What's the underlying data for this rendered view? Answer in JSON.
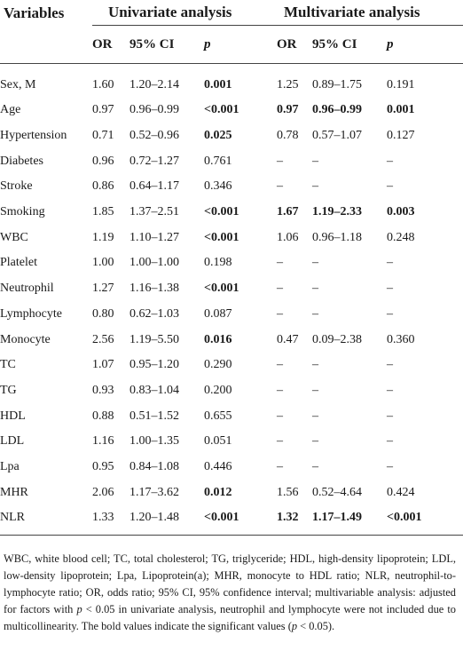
{
  "table": {
    "header_row1": {
      "variables": "Variables",
      "univariate": "Univariate analysis",
      "multivariate": "Multivariate analysis"
    },
    "header_row2": {
      "or_uni": "OR",
      "ci_uni": "95% CI",
      "p_uni": "p",
      "or_multi": "OR",
      "ci_multi": "95% CI",
      "p_multi": "p"
    },
    "rows": [
      {
        "variable": "Sex, M",
        "or_uni": "1.60",
        "ci_uni": "1.20–2.14",
        "p_uni": "0.001",
        "p_uni_bold": true,
        "or_multi": "1.25",
        "ci_multi": "0.89–1.75",
        "p_multi": "0.191",
        "multi_bold": false
      },
      {
        "variable": "Age",
        "or_uni": "0.97",
        "ci_uni": "0.96–0.99",
        "p_uni": "<0.001",
        "p_uni_bold": true,
        "or_multi": "0.97",
        "ci_multi": "0.96–0.99",
        "p_multi": "0.001",
        "multi_bold": true
      },
      {
        "variable": "Hypertension",
        "or_uni": "0.71",
        "ci_uni": "0.52–0.96",
        "p_uni": "0.025",
        "p_uni_bold": true,
        "or_multi": "0.78",
        "ci_multi": "0.57–1.07",
        "p_multi": "0.127",
        "multi_bold": false
      },
      {
        "variable": "Diabetes",
        "or_uni": "0.96",
        "ci_uni": "0.72–1.27",
        "p_uni": "0.761",
        "p_uni_bold": false,
        "or_multi": "–",
        "ci_multi": "–",
        "p_multi": "–",
        "multi_bold": false
      },
      {
        "variable": "Stroke",
        "or_uni": "0.86",
        "ci_uni": "0.64–1.17",
        "p_uni": "0.346",
        "p_uni_bold": false,
        "or_multi": "–",
        "ci_multi": "–",
        "p_multi": "–",
        "multi_bold": false
      },
      {
        "variable": "Smoking",
        "or_uni": "1.85",
        "ci_uni": "1.37–2.51",
        "p_uni": "<0.001",
        "p_uni_bold": true,
        "or_multi": "1.67",
        "ci_multi": "1.19–2.33",
        "p_multi": "0.003",
        "multi_bold": true
      },
      {
        "variable": "WBC",
        "or_uni": "1.19",
        "ci_uni": "1.10–1.27",
        "p_uni": "<0.001",
        "p_uni_bold": true,
        "or_multi": "1.06",
        "ci_multi": "0.96–1.18",
        "p_multi": "0.248",
        "multi_bold": false
      },
      {
        "variable": "Platelet",
        "or_uni": "1.00",
        "ci_uni": "1.00–1.00",
        "p_uni": "0.198",
        "p_uni_bold": false,
        "or_multi": "–",
        "ci_multi": "–",
        "p_multi": "–",
        "multi_bold": false
      },
      {
        "variable": "Neutrophil",
        "or_uni": "1.27",
        "ci_uni": "1.16–1.38",
        "p_uni": "<0.001",
        "p_uni_bold": true,
        "or_multi": "–",
        "ci_multi": "–",
        "p_multi": "–",
        "multi_bold": false
      },
      {
        "variable": "Lymphocyte",
        "or_uni": "0.80",
        "ci_uni": "0.62–1.03",
        "p_uni": "0.087",
        "p_uni_bold": false,
        "or_multi": "–",
        "ci_multi": "–",
        "p_multi": "–",
        "multi_bold": false
      },
      {
        "variable": "Monocyte",
        "or_uni": "2.56",
        "ci_uni": "1.19–5.50",
        "p_uni": "0.016",
        "p_uni_bold": true,
        "or_multi": "0.47",
        "ci_multi": "0.09–2.38",
        "p_multi": "0.360",
        "multi_bold": false
      },
      {
        "variable": "TC",
        "or_uni": "1.07",
        "ci_uni": "0.95–1.20",
        "p_uni": "0.290",
        "p_uni_bold": false,
        "or_multi": "–",
        "ci_multi": "–",
        "p_multi": "–",
        "multi_bold": false
      },
      {
        "variable": "TG",
        "or_uni": "0.93",
        "ci_uni": "0.83–1.04",
        "p_uni": "0.200",
        "p_uni_bold": false,
        "or_multi": "–",
        "ci_multi": "–",
        "p_multi": "–",
        "multi_bold": false
      },
      {
        "variable": "HDL",
        "or_uni": "0.88",
        "ci_uni": "0.51–1.52",
        "p_uni": "0.655",
        "p_uni_bold": false,
        "or_multi": "–",
        "ci_multi": "–",
        "p_multi": "–",
        "multi_bold": false
      },
      {
        "variable": "LDL",
        "or_uni": "1.16",
        "ci_uni": "1.00–1.35",
        "p_uni": "0.051",
        "p_uni_bold": false,
        "or_multi": "–",
        "ci_multi": "–",
        "p_multi": "–",
        "multi_bold": false
      },
      {
        "variable": "Lpa",
        "or_uni": "0.95",
        "ci_uni": "0.84–1.08",
        "p_uni": "0.446",
        "p_uni_bold": false,
        "or_multi": "–",
        "ci_multi": "–",
        "p_multi": "–",
        "multi_bold": false
      },
      {
        "variable": "MHR",
        "or_uni": "2.06",
        "ci_uni": "1.17–3.62",
        "p_uni": "0.012",
        "p_uni_bold": true,
        "or_multi": "1.56",
        "ci_multi": "0.52–4.64",
        "p_multi": "0.424",
        "multi_bold": false
      },
      {
        "variable": "NLR",
        "or_uni": "1.33",
        "ci_uni": "1.20–1.48",
        "p_uni": "<0.001",
        "p_uni_bold": true,
        "or_multi": "1.32",
        "ci_multi": "1.17–1.49",
        "p_multi": "<0.001",
        "multi_bold": true
      }
    ]
  },
  "footnote": {
    "part1": "WBC, white blood cell; TC, total cholesterol; TG, triglyceride; HDL, high-density lipoprotein; LDL, low-density lipoprotein; Lpa, Lipoprotein(a); MHR, monocyte to HDL ratio; NLR, neutrophil-to-lymphocyte ratio; OR, odds ratio; 95% CI, 95% confidence interval; multivariable analysis: adjusted for factors with ",
    "p1": "p",
    "part2": " < 0.05 in univariate analysis, neutrophil and lymphocyte were not included due to multicollinearity. The bold values indicate the significant values (",
    "p2": "p",
    "part3": " < 0.05)."
  }
}
